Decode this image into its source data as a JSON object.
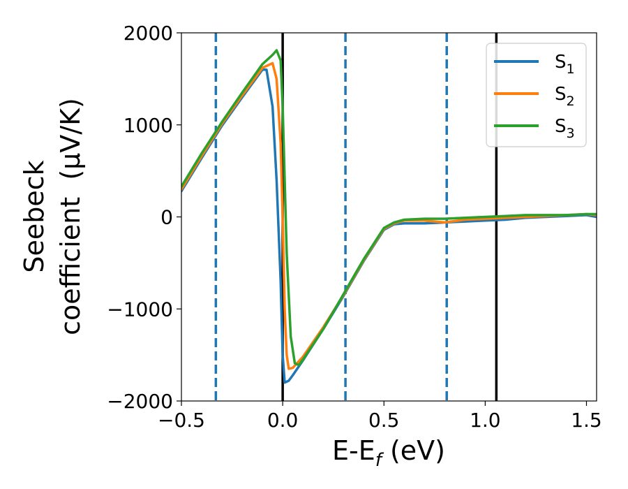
{
  "chart_data": {
    "type": "line",
    "xlabel": "E-E",
    "xlabel_sub": "f",
    "xlabel_unit": " (eV)",
    "ylabel_line1": "Seebeck",
    "ylabel_line2": "coefficient  (μV/K)",
    "xlim": [
      -0.5,
      1.55
    ],
    "ylim": [
      -2000,
      2000
    ],
    "x_ticks": [
      -0.5,
      0.0,
      0.5,
      1.0,
      1.5
    ],
    "x_tick_labels": [
      "−0.5",
      "0.0",
      "0.5",
      "1.0",
      "1.5"
    ],
    "y_ticks": [
      -2000,
      -1000,
      0,
      1000,
      2000
    ],
    "y_tick_labels": [
      "−2000",
      "−1000",
      "0",
      "1000",
      "2000"
    ],
    "grid": false,
    "legend_position": "top-right",
    "vertical_lines": [
      {
        "x": -0.33,
        "style": "dashed",
        "color": "#1f77b4"
      },
      {
        "x": 0.31,
        "style": "dashed",
        "color": "#1f77b4"
      },
      {
        "x": 0.81,
        "style": "dashed",
        "color": "#1f77b4"
      },
      {
        "x": 0.0,
        "style": "solid",
        "color": "#000000"
      },
      {
        "x": 1.055,
        "style": "solid",
        "color": "#000000"
      }
    ],
    "series": [
      {
        "name": "S",
        "name_sub": "1",
        "color": "#1f77b4",
        "x": [
          -0.5,
          -0.4,
          -0.3,
          -0.2,
          -0.1,
          -0.08,
          -0.05,
          -0.03,
          -0.01,
          0.0,
          0.01,
          0.03,
          0.05,
          0.1,
          0.2,
          0.3,
          0.4,
          0.5,
          0.55,
          0.6,
          0.7,
          0.8,
          0.9,
          1.0,
          1.1,
          1.2,
          1.3,
          1.4,
          1.5,
          1.55
        ],
        "y": [
          280,
          640,
          990,
          1300,
          1600,
          1600,
          1200,
          400,
          -700,
          -1500,
          -1800,
          -1780,
          -1720,
          -1560,
          -1220,
          -860,
          -480,
          -140,
          -80,
          -70,
          -70,
          -60,
          -50,
          -40,
          -30,
          -10,
          0,
          10,
          20,
          0
        ]
      },
      {
        "name": "S",
        "name_sub": "2",
        "color": "#ff7f0e",
        "x": [
          -0.5,
          -0.4,
          -0.3,
          -0.2,
          -0.1,
          -0.05,
          -0.03,
          -0.01,
          0.0,
          0.01,
          0.02,
          0.03,
          0.05,
          0.1,
          0.2,
          0.3,
          0.4,
          0.5,
          0.55,
          0.6,
          0.7,
          0.8,
          0.9,
          1.0,
          1.1,
          1.2,
          1.3,
          1.4,
          1.5,
          1.55
        ],
        "y": [
          300,
          660,
          1010,
          1320,
          1620,
          1670,
          1500,
          800,
          0,
          -1000,
          -1500,
          -1650,
          -1640,
          -1520,
          -1200,
          -850,
          -470,
          -130,
          -70,
          -40,
          -40,
          -60,
          -30,
          -20,
          -10,
          0,
          10,
          20,
          30,
          20
        ]
      },
      {
        "name": "S",
        "name_sub": "3",
        "color": "#2ca02c",
        "x": [
          -0.5,
          -0.4,
          -0.3,
          -0.2,
          -0.1,
          -0.05,
          -0.03,
          -0.01,
          0.0,
          0.02,
          0.04,
          0.06,
          0.08,
          0.1,
          0.2,
          0.3,
          0.4,
          0.5,
          0.55,
          0.6,
          0.7,
          0.8,
          0.9,
          1.0,
          1.1,
          1.2,
          1.3,
          1.4,
          1.5,
          1.55
        ],
        "y": [
          330,
          690,
          1030,
          1350,
          1660,
          1760,
          1810,
          1700,
          1200,
          -400,
          -1300,
          -1590,
          -1610,
          -1550,
          -1220,
          -840,
          -460,
          -120,
          -60,
          -30,
          -20,
          -20,
          -10,
          0,
          10,
          20,
          20,
          20,
          30,
          30
        ]
      }
    ]
  }
}
